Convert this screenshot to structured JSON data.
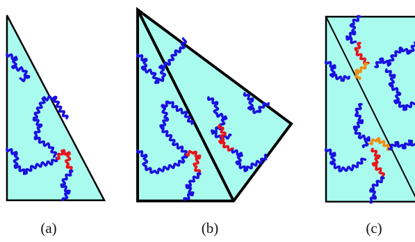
{
  "colors": {
    "fill": "#a9fbee",
    "outline": "#000000",
    "curve_main": "#1a10e0",
    "curve_red": "#e8141c",
    "curve_orange": "#f08c14"
  },
  "panels": [
    {
      "id": "a",
      "caption": "(a)",
      "shape": "right-triangle"
    },
    {
      "id": "b",
      "caption": "(b)",
      "shape": "triangle-pair"
    },
    {
      "id": "c",
      "caption": "(c)",
      "shape": "rectangle-with-diagonal"
    }
  ]
}
